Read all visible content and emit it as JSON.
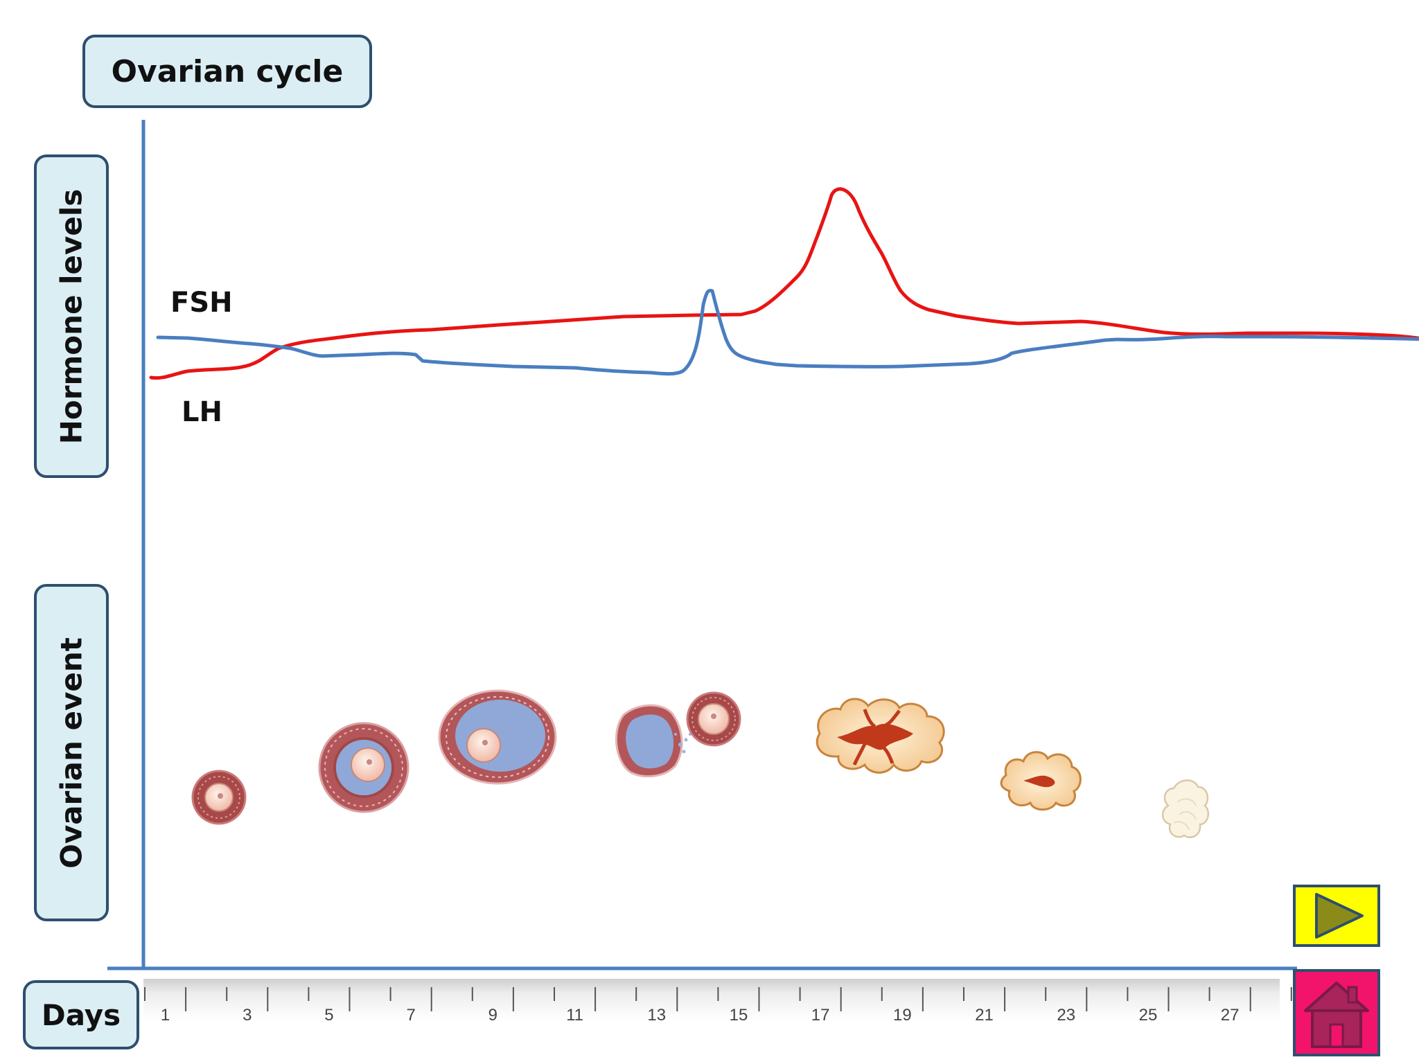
{
  "title": "Ovarian cycle",
  "y_labels": {
    "hormones": "Hormone levels",
    "events": "Ovarian event"
  },
  "x_label": "Days",
  "series_labels": {
    "fsh": "FSH",
    "lh": "LH"
  },
  "colors": {
    "fsh": "#e81414",
    "lh": "#4a7ec0",
    "axis": "#4a7ec0",
    "box_fill": "#dbeef4",
    "box_border": "#2e4f6e"
  },
  "day_ticks": [
    "1",
    "3",
    "5",
    "7",
    "9",
    "11",
    "13",
    "15",
    "17",
    "19",
    "21",
    "23",
    "25",
    "27"
  ],
  "icons": {
    "next": "play-triangle-icon",
    "home": "house-icon"
  },
  "ovarian_events": [
    {
      "day": 2,
      "stage": "primary follicle"
    },
    {
      "day": 5.5,
      "stage": "secondary follicle"
    },
    {
      "day": 9,
      "stage": "vesicular follicle"
    },
    {
      "day": 14,
      "stage": "ovulation"
    },
    {
      "day": 18,
      "stage": "corpus luteum"
    },
    {
      "day": 23,
      "stage": "corpus luteum"
    },
    {
      "day": 27,
      "stage": "corpus albicans"
    }
  ]
}
